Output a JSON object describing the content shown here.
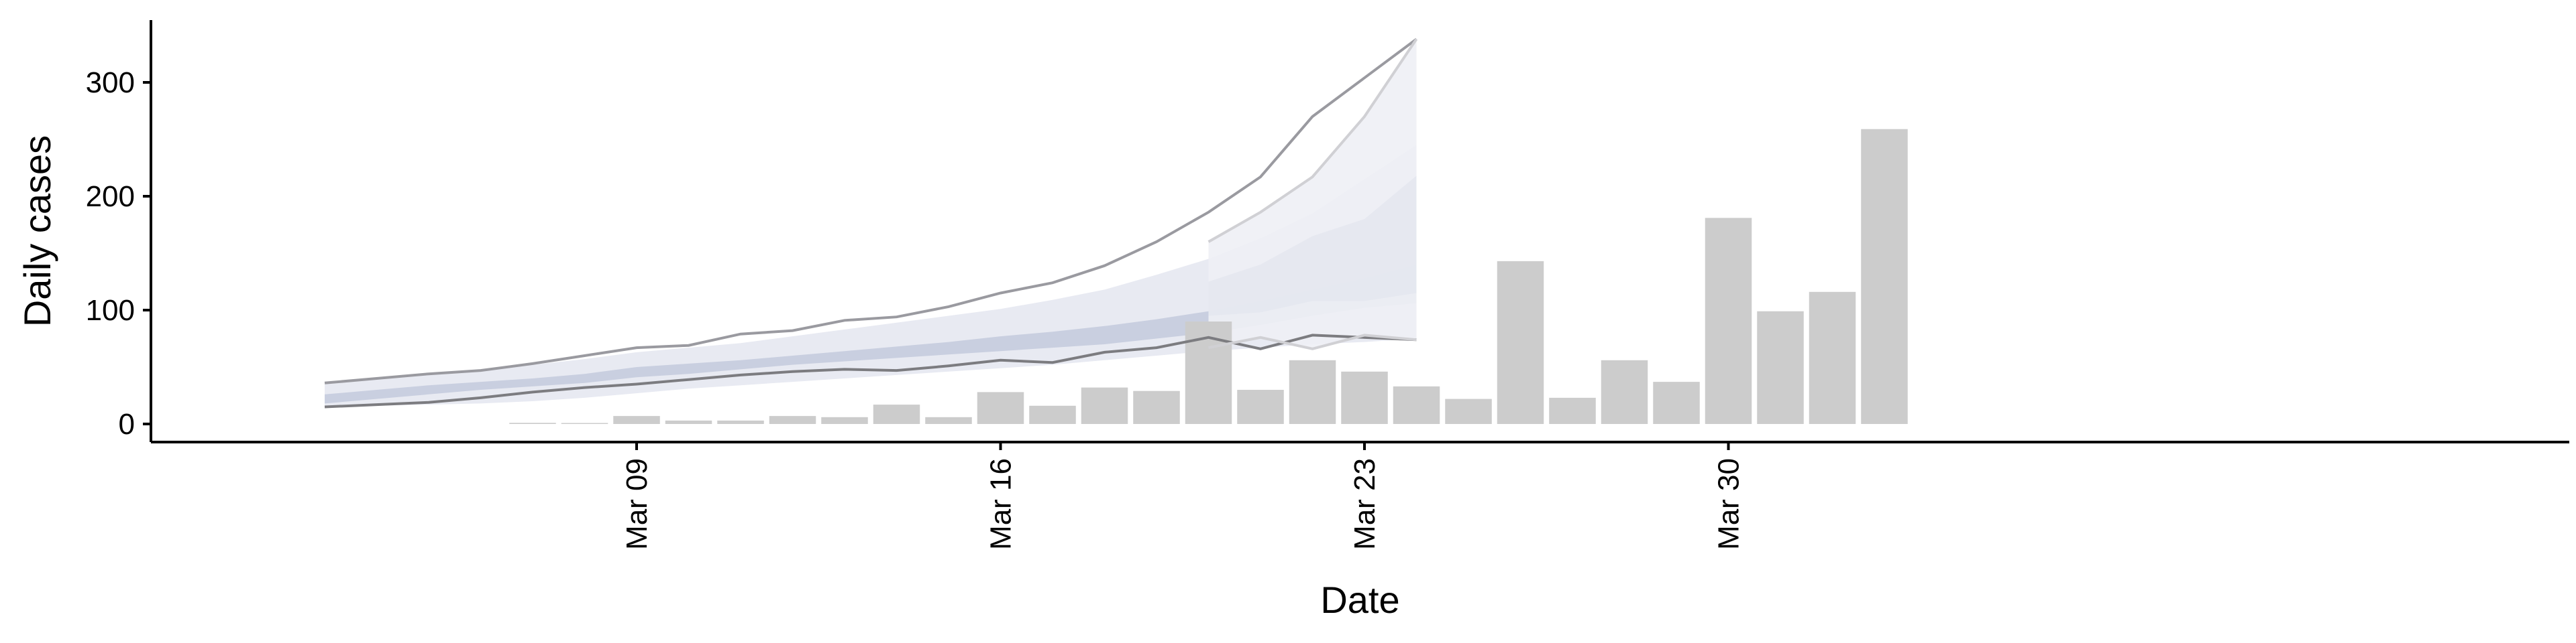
{
  "chart_data": {
    "type": "bar",
    "xlabel": "Date",
    "ylabel": "Daily cases",
    "ylim": [
      -15,
      355
    ],
    "yticks": [
      0,
      100,
      200,
      300
    ],
    "xticks": [
      {
        "date": "2020-03-09",
        "label": "Mar 09"
      },
      {
        "date": "2020-03-16",
        "label": "Mar 16"
      },
      {
        "date": "2020-03-23",
        "label": "Mar 23"
      },
      {
        "date": "2020-03-30",
        "label": "Mar 30"
      }
    ],
    "xlim": [
      "2020-03-01",
      "2020-04-05"
    ],
    "grid": false,
    "legend": "none",
    "observed_cases": [
      {
        "date": "2020-03-07",
        "value": 1
      },
      {
        "date": "2020-03-08",
        "value": 0
      },
      {
        "date": "2020-03-09",
        "value": 7
      },
      {
        "date": "2020-03-10",
        "value": 3
      },
      {
        "date": "2020-03-11",
        "value": 3
      },
      {
        "date": "2020-03-12",
        "value": 7
      },
      {
        "date": "2020-03-13",
        "value": 6
      },
      {
        "date": "2020-03-14",
        "value": 17
      },
      {
        "date": "2020-03-15",
        "value": 6
      },
      {
        "date": "2020-03-16",
        "value": 28
      },
      {
        "date": "2020-03-17",
        "value": 16
      },
      {
        "date": "2020-03-18",
        "value": 32
      },
      {
        "date": "2020-03-19",
        "value": 29
      },
      {
        "date": "2020-03-20",
        "value": 90
      },
      {
        "date": "2020-03-21",
        "value": 30
      },
      {
        "date": "2020-03-22",
        "value": 56
      },
      {
        "date": "2020-03-23",
        "value": 46
      },
      {
        "date": "2020-03-24",
        "value": 33
      },
      {
        "date": "2020-03-25",
        "value": 22
      },
      {
        "date": "2020-03-26",
        "value": 143
      },
      {
        "date": "2020-03-27",
        "value": 23
      },
      {
        "date": "2020-03-28",
        "value": 56
      },
      {
        "date": "2020-03-29",
        "value": 37
      },
      {
        "date": "2020-03-30",
        "value": 181
      },
      {
        "date": "2020-03-31",
        "value": 99
      },
      {
        "date": "2020-04-01",
        "value": 116
      },
      {
        "date": "2020-04-02",
        "value": 259
      }
    ],
    "estimate_bands": {
      "dates": [
        "2020-03-03",
        "2020-03-04",
        "2020-03-05",
        "2020-03-06",
        "2020-03-07",
        "2020-03-08",
        "2020-03-09",
        "2020-03-10",
        "2020-03-11",
        "2020-03-12",
        "2020-03-13",
        "2020-03-14",
        "2020-03-15",
        "2020-03-16",
        "2020-03-17",
        "2020-03-18",
        "2020-03-19",
        "2020-03-20",
        "2020-03-21",
        "2020-03-22",
        "2020-03-23",
        "2020-03-24"
      ],
      "lower_90": [
        15,
        16,
        17,
        18,
        20,
        23,
        27,
        31,
        34,
        37,
        40,
        43,
        46,
        49,
        52,
        56,
        60,
        64,
        67,
        70,
        72,
        75
      ],
      "lower_50": [
        18,
        22,
        26,
        30,
        33,
        36,
        41,
        44,
        48,
        52,
        55,
        58,
        61,
        64,
        67,
        70,
        75,
        80,
        87,
        95,
        102,
        106
      ],
      "upper_50": [
        26,
        30,
        34,
        37,
        40,
        44,
        50,
        53,
        56,
        60,
        64,
        68,
        72,
        77,
        81,
        86,
        92,
        99,
        108,
        118,
        128,
        140
      ],
      "upper_90": [
        35,
        40,
        44,
        47,
        52,
        57,
        63,
        67,
        71,
        77,
        83,
        89,
        95,
        101,
        109,
        118,
        131,
        145,
        163,
        185,
        215,
        245
      ],
      "outline_upper": [
        36,
        40,
        44,
        47,
        53,
        60,
        67,
        69,
        79,
        82,
        91,
        94,
        103,
        115,
        124,
        139,
        160,
        186,
        217,
        270,
        338
      ],
      "outline_lower": [
        15,
        17,
        19,
        23,
        28,
        32,
        35,
        39,
        43,
        46,
        48,
        47,
        51,
        56,
        54,
        63,
        67,
        76,
        66,
        78,
        74
      ]
    },
    "outline_dates": [
      "2020-03-03",
      "2020-03-04",
      "2020-03-05",
      "2020-03-06",
      "2020-03-07",
      "2020-03-08",
      "2020-03-09",
      "2020-03-10",
      "2020-03-11",
      "2020-03-12",
      "2020-03-13",
      "2020-03-14",
      "2020-03-15",
      "2020-03-16",
      "2020-03-17",
      "2020-03-18",
      "2020-03-19",
      "2020-03-20",
      "2020-03-21",
      "2020-03-22",
      "2020-03-24"
    ],
    "forecast_overlay": {
      "dates": [
        "2020-03-20",
        "2020-03-21",
        "2020-03-22",
        "2020-03-23",
        "2020-03-24"
      ],
      "upper_90": [
        160,
        186,
        217,
        270,
        338
      ],
      "upper_50": [
        125,
        140,
        165,
        180,
        218
      ],
      "lower_50": [
        95,
        98,
        108,
        108,
        115
      ],
      "lower_90": [
        67,
        76,
        66,
        78,
        74
      ]
    },
    "colors": {
      "bars": "#cccccc",
      "band_outer": "#e8eaf2",
      "band_inner": "#c9cfe0",
      "line_upper": "#9a9aa0",
      "line_lower": "#7c7c80",
      "forecast_fill": "#eef0f5",
      "forecast_line": "#d0d0d4",
      "axis": "#000000"
    }
  }
}
